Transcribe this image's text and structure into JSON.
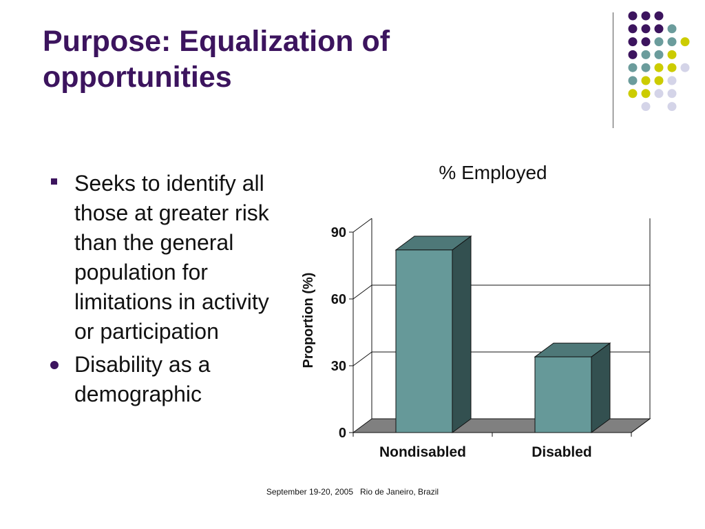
{
  "slide": {
    "title_line1": "Purpose: Equalization of",
    "title_line2": "opportunities",
    "bullets": [
      {
        "marker": "square",
        "text": "Seeks to identify all those at greater risk than the general population for limitations in activity or participation"
      },
      {
        "marker": "circle",
        "text": "Disability as a demographic"
      }
    ],
    "footer": "September 19-20, 2005   Rio de Janeiro, Brazil"
  },
  "decor": {
    "dot_colors": {
      "purple": "#3c145e",
      "teal": "#6b9c9c",
      "yellow": "#cccc00",
      "lavender": "#d4d4e8"
    }
  },
  "colors": {
    "title": "#3c145e",
    "bar_front": "#669999",
    "bar_top": "#4e7878",
    "bar_side": "#335050",
    "floor": "#808080"
  },
  "chart_data": {
    "type": "bar",
    "title": "% Employed",
    "ylabel": "Proportion (%)",
    "xlabel": "",
    "categories": [
      "Nondisabled",
      "Disabled"
    ],
    "values": [
      82,
      34
    ],
    "ylim": [
      0,
      90
    ],
    "yticks": [
      0,
      30,
      60,
      90
    ],
    "grid": true,
    "legend": "none",
    "style": "3d"
  }
}
